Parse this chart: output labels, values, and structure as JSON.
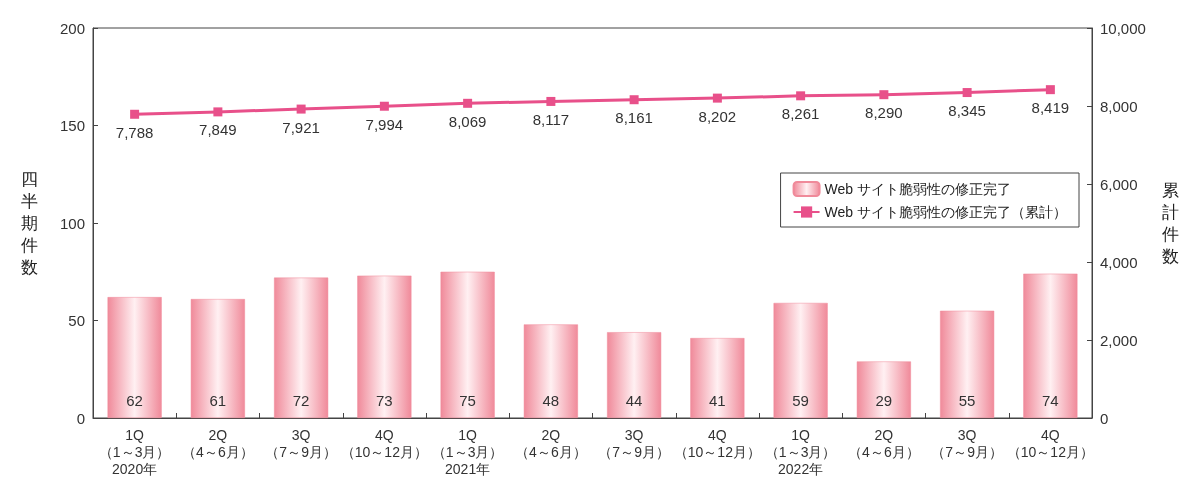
{
  "chart_data": {
    "type": "bar",
    "ylabel": "四半期件数",
    "y2label": "累計件数",
    "categories": [
      "1Q\n（1～3月）\n2020年",
      "2Q\n（4～6月）",
      "3Q\n（7～9月）",
      "4Q\n（10～12月）",
      "1Q\n（1～3月）\n2021年",
      "2Q\n（4～6月）",
      "3Q\n（7～9月）",
      "4Q\n（10～12月）",
      "1Q\n（1～3月）\n2022年",
      "2Q\n（4～6月）",
      "3Q\n（7～9月）",
      "4Q\n（10～12月）"
    ],
    "series": [
      {
        "name": "Web サイト脆弱性の修正完了",
        "color": "#f08a9a",
        "values": [
          62,
          61,
          72,
          73,
          75,
          48,
          44,
          41,
          59,
          29,
          55,
          74
        ]
      },
      {
        "name": "Web サイト脆弱性の修正完了（累計）",
        "type": "line",
        "axis": "y2",
        "color": "#e8508a",
        "marker": "square",
        "values": [
          7788,
          7849,
          7921,
          7994,
          8069,
          8117,
          8161,
          8202,
          8261,
          8290,
          8345,
          8419
        ],
        "value_labels": [
          "7,788",
          "7,849",
          "7,921",
          "7,994",
          "8,069",
          "8,117",
          "8,161",
          "8,202",
          "8,261",
          "8,290",
          "8,345",
          "8,419"
        ]
      }
    ],
    "ylim": [
      0,
      200
    ],
    "yticks": [
      0,
      50,
      100,
      150,
      200
    ],
    "y2lim": [
      0,
      10000
    ],
    "y2ticks": [
      0,
      {
        "value": 2000,
        "label": "2,000"
      },
      {
        "value": 4000,
        "label": "4,000"
      },
      {
        "value": 6000,
        "label": "6,000"
      },
      {
        "value": 8000,
        "label": "8,000"
      },
      {
        "value": 10000,
        "label": "10,000"
      }
    ],
    "data_labels": true,
    "grid": false,
    "legend": "right"
  }
}
